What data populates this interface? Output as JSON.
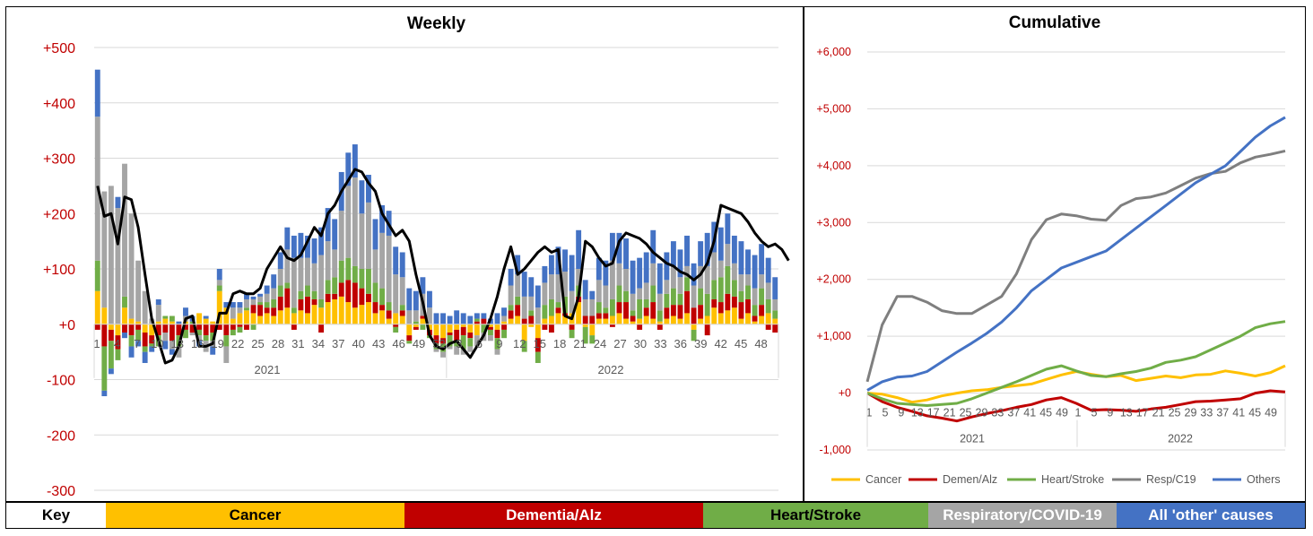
{
  "chart_data": [
    {
      "type": "bar",
      "stacked": true,
      "title": "Weekly",
      "ylim": [
        -300,
        500
      ],
      "yticks": [
        {
          "v": 500,
          "label": "+500"
        },
        {
          "v": 400,
          "label": "+400"
        },
        {
          "v": 300,
          "label": "+300"
        },
        {
          "v": 200,
          "label": "+200"
        },
        {
          "v": 100,
          "label": "+100"
        },
        {
          "v": 0,
          "label": "+0"
        },
        {
          "v": -100,
          "label": "-100"
        },
        {
          "v": -200,
          "label": "-200"
        },
        {
          "v": -300,
          "label": "-300"
        }
      ],
      "week_ticks": [
        "1",
        "4",
        "7",
        "10",
        "13",
        "16",
        "19",
        "22",
        "25",
        "28",
        "31",
        "34",
        "37",
        "40",
        "43",
        "46",
        "49",
        "52",
        "3",
        "6",
        "9",
        "12",
        "15",
        "18",
        "21",
        "24",
        "27",
        "30",
        "33",
        "36",
        "39",
        "42",
        "45",
        "48"
      ],
      "year_labels": [
        "2021",
        "2022"
      ],
      "series": [
        {
          "name": "Cancer",
          "color": "#FFC000",
          "values": [
            60,
            30,
            -10,
            -20,
            30,
            10,
            5,
            -15,
            -20,
            5,
            10,
            5,
            0,
            5,
            0,
            20,
            10,
            5,
            60,
            30,
            10,
            20,
            25,
            20,
            15,
            20,
            15,
            25,
            30,
            20,
            25,
            20,
            35,
            30,
            40,
            45,
            50,
            40,
            30,
            35,
            40,
            20,
            25,
            10,
            20,
            15,
            -20,
            -5,
            10,
            -10,
            -20,
            -25,
            -15,
            -10,
            -5,
            -15,
            -20,
            0,
            -5,
            -10,
            5,
            10,
            15,
            -30,
            -5,
            -25,
            10,
            15,
            20,
            15,
            20,
            40,
            -5,
            -20,
            10,
            10,
            15,
            20,
            10,
            5,
            10,
            15,
            10,
            5,
            10,
            15,
            10,
            20,
            -10,
            10,
            15,
            30,
            20,
            25,
            30,
            10,
            20,
            5,
            15,
            20,
            10
          ]
        },
        {
          "name": "Dementia/Alz",
          "color": "#C00000",
          "values": [
            -10,
            -40,
            -20,
            -25,
            -15,
            -20,
            -10,
            -25,
            -15,
            -20,
            -15,
            -30,
            -20,
            -10,
            -15,
            -10,
            -20,
            -15,
            -10,
            -20,
            -10,
            -5,
            -10,
            15,
            20,
            10,
            15,
            25,
            35,
            -10,
            20,
            30,
            10,
            -15,
            15,
            10,
            25,
            40,
            45,
            30,
            15,
            20,
            10,
            15,
            -5,
            10,
            -10,
            -5,
            5,
            -10,
            -15,
            -10,
            -5,
            -20,
            -15,
            -10,
            5,
            10,
            -5,
            -15,
            -10,
            15,
            20,
            10,
            15,
            -25,
            -10,
            -15,
            10,
            5,
            -10,
            10,
            15,
            15,
            10,
            10,
            -5,
            20,
            30,
            10,
            -10,
            15,
            30,
            -10,
            20,
            20,
            25,
            40,
            30,
            25,
            -20,
            15,
            20,
            30,
            20,
            30,
            25,
            10,
            20,
            -10,
            -15,
            10,
            -5
          ]
        },
        {
          "name": "Heart/Stroke",
          "color": "#70AD47",
          "values": [
            55,
            -80,
            -50,
            -20,
            20,
            -20,
            -20,
            -10,
            -5,
            -20,
            5,
            10,
            -20,
            -15,
            5,
            -10,
            -10,
            -15,
            10,
            -20,
            -10,
            -10,
            5,
            -10,
            5,
            10,
            15,
            20,
            10,
            10,
            15,
            20,
            15,
            15,
            25,
            30,
            40,
            40,
            30,
            35,
            45,
            35,
            30,
            15,
            -10,
            10,
            -5,
            5,
            -10,
            -5,
            -10,
            -15,
            -20,
            -10,
            -25,
            -15,
            5,
            -15,
            -10,
            -20,
            -15,
            10,
            15,
            -20,
            10,
            -20,
            25,
            30,
            10,
            30,
            -15,
            20,
            -30,
            -15,
            20,
            10,
            30,
            30,
            20,
            10,
            35,
            15,
            30,
            20,
            25,
            30,
            20,
            25,
            -20,
            30,
            40,
            35,
            45,
            50,
            30,
            20,
            25,
            20,
            30,
            25,
            15
          ]
        },
        {
          "name": "Respiratory/COVID-19",
          "color": "#A5A5A5",
          "values": [
            260,
            210,
            250,
            210,
            240,
            190,
            110,
            60,
            10,
            30,
            -15,
            -15,
            -20,
            10,
            -5,
            -10,
            -20,
            -10,
            10,
            -30,
            20,
            10,
            15,
            10,
            10,
            15,
            20,
            30,
            60,
            90,
            60,
            50,
            50,
            80,
            70,
            50,
            90,
            130,
            160,
            100,
            120,
            60,
            100,
            120,
            70,
            50,
            25,
            20,
            40,
            30,
            -5,
            -10,
            -5,
            -15,
            -10,
            -10,
            -20,
            -15,
            -10,
            -10,
            10,
            35,
            40,
            40,
            25,
            30,
            40,
            45,
            50,
            45,
            40,
            30,
            30,
            30,
            40,
            40,
            70,
            40,
            40,
            30,
            20,
            30,
            40,
            30,
            25,
            40,
            30,
            20,
            40,
            40,
            50,
            50,
            30,
            40,
            30,
            30,
            20,
            30,
            25,
            30,
            20,
            10,
            5
          ]
        },
        {
          "name": "All 'other' causes",
          "color": "#4472C4",
          "values": [
            85,
            -10,
            -10,
            20,
            -10,
            -20,
            -10,
            -20,
            -10,
            10,
            -15,
            -10,
            5,
            15,
            10,
            -10,
            5,
            -15,
            20,
            10,
            10,
            10,
            10,
            5,
            5,
            15,
            25,
            30,
            40,
            40,
            45,
            40,
            45,
            50,
            60,
            55,
            70,
            60,
            60,
            60,
            50,
            55,
            50,
            45,
            50,
            45,
            40,
            35,
            30,
            30,
            20,
            20,
            15,
            25,
            20,
            15,
            10,
            10,
            10,
            20,
            15,
            30,
            35,
            45,
            35,
            40,
            30,
            35,
            50,
            40,
            65,
            70,
            35,
            15,
            40,
            45,
            50,
            55,
            55,
            60,
            55,
            55,
            60,
            55,
            50,
            45,
            50,
            55,
            40,
            45,
            60,
            55,
            60,
            55,
            50,
            60,
            45,
            60,
            55,
            45,
            40,
            45,
            40
          ]
        }
      ],
      "trend_line": {
        "name": "Total (trend)",
        "color": "#000000",
        "values": [
          250,
          195,
          200,
          145,
          230,
          225,
          175,
          90,
          10,
          -30,
          -70,
          -65,
          -40,
          10,
          15,
          -40,
          -40,
          -35,
          20,
          20,
          55,
          60,
          55,
          55,
          65,
          100,
          120,
          140,
          120,
          115,
          125,
          150,
          175,
          160,
          200,
          215,
          240,
          260,
          280,
          275,
          255,
          240,
          200,
          180,
          160,
          170,
          150,
          90,
          40,
          -20,
          -40,
          -45,
          -35,
          -30,
          -45,
          -60,
          -40,
          -20,
          10,
          50,
          100,
          140,
          90,
          100,
          115,
          130,
          140,
          130,
          135,
          15,
          10,
          50,
          150,
          140,
          120,
          105,
          110,
          150,
          165,
          160,
          155,
          145,
          130,
          120,
          110,
          105,
          95,
          90,
          80,
          90,
          110,
          150,
          215,
          210,
          205,
          200,
          185,
          165,
          150,
          140,
          145,
          135,
          115
        ]
      }
    },
    {
      "type": "line",
      "title": "Cumulative",
      "ylim": [
        -1000,
        6000
      ],
      "yticks": [
        {
          "v": 6000,
          "label": "+6,000"
        },
        {
          "v": 5000,
          "label": "+5,000"
        },
        {
          "v": 4000,
          "label": "+4,000"
        },
        {
          "v": 3000,
          "label": "+3,000"
        },
        {
          "v": 2000,
          "label": "+2,000"
        },
        {
          "v": 1000,
          "label": "+1,000"
        },
        {
          "v": 0,
          "label": "+0"
        },
        {
          "v": -1000,
          "label": "-1,000"
        }
      ],
      "week_ticks": [
        "1",
        "5",
        "9",
        "13",
        "17",
        "21",
        "25",
        "29",
        "33",
        "37",
        "41",
        "45",
        "49",
        "1",
        "5",
        "9",
        "13",
        "17",
        "21",
        "25",
        "29",
        "33",
        "37",
        "41",
        "45",
        "49"
      ],
      "year_labels": [
        "2021",
        "2022"
      ],
      "legend_position": "bottom",
      "series": [
        {
          "name": "Cancer",
          "color": "#FFC000",
          "values": [
            0,
            -20,
            -80,
            -160,
            -120,
            -50,
            0,
            40,
            60,
            100,
            130,
            160,
            240,
            320,
            380,
            330,
            290,
            310,
            220,
            260,
            300,
            270,
            320,
            330,
            390,
            350,
            300,
            360,
            480
          ]
        },
        {
          "name": "Demen/Alz",
          "color": "#C00000",
          "values": [
            0,
            -150,
            -250,
            -320,
            -400,
            -440,
            -490,
            -420,
            -360,
            -310,
            -250,
            -200,
            -120,
            -80,
            -180,
            -300,
            -290,
            -300,
            -320,
            -280,
            -250,
            -200,
            -150,
            -140,
            -120,
            -100,
            0,
            40,
            20
          ]
        },
        {
          "name": "Heart/Stroke",
          "color": "#70AD47",
          "values": [
            0,
            -100,
            -180,
            -200,
            -220,
            -200,
            -180,
            -100,
            0,
            100,
            200,
            310,
            420,
            480,
            390,
            310,
            290,
            340,
            380,
            440,
            540,
            580,
            640,
            760,
            880,
            1000,
            1150,
            1220,
            1260
          ]
        },
        {
          "name": "Resp/C19",
          "color": "#7F7F7F",
          "values": [
            200,
            1200,
            1700,
            1700,
            1600,
            1450,
            1400,
            1400,
            1550,
            1700,
            2100,
            2700,
            3050,
            3150,
            3120,
            3060,
            3040,
            3300,
            3420,
            3450,
            3520,
            3650,
            3780,
            3860,
            3900,
            4050,
            4150,
            4200,
            4260
          ]
        },
        {
          "name": "Others",
          "color": "#4472C4",
          "values": [
            50,
            200,
            280,
            300,
            380,
            550,
            720,
            880,
            1050,
            1250,
            1500,
            1800,
            2000,
            2200,
            2300,
            2400,
            2500,
            2700,
            2900,
            3100,
            3300,
            3500,
            3700,
            3850,
            4000,
            4250,
            4500,
            4700,
            4850
          ]
        }
      ]
    }
  ],
  "key": {
    "label": "Key",
    "items": [
      {
        "label": "Cancer",
        "color": "#FFC000",
        "text_color": "#000000"
      },
      {
        "label": "Dementia/Alz",
        "color": "#C00000",
        "text_color": "#ffffff"
      },
      {
        "label": "Heart/Stroke",
        "color": "#70AD47",
        "text_color": "#000000"
      },
      {
        "label": "Respiratory/COVID-19",
        "color": "#A5A5A5",
        "text_color": "#ffffff"
      },
      {
        "label": "All 'other' causes",
        "color": "#4472C4",
        "text_color": "#ffffff"
      }
    ]
  },
  "colors": {
    "axis_label": "#C00000",
    "gridline": "#D9D9D9"
  }
}
